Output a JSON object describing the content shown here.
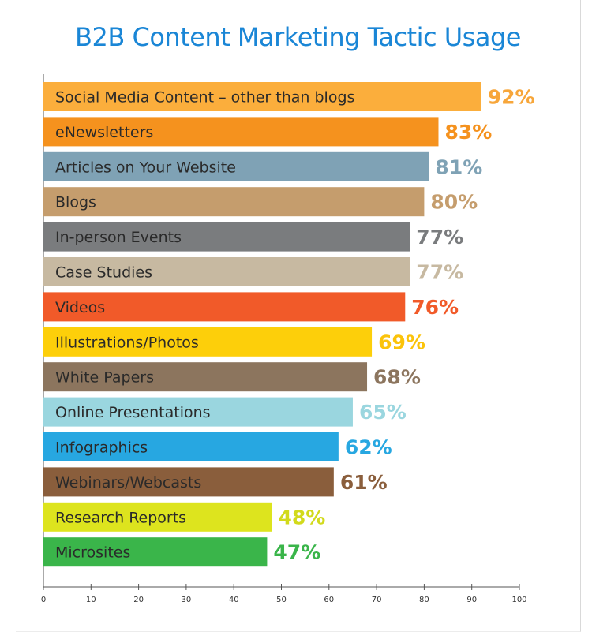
{
  "chart_data": {
    "type": "bar",
    "orientation": "horizontal",
    "title": "B2B Content Marketing Tactic Usage",
    "categories": [
      "Social Media Content – other than blogs",
      "eNewsletters",
      "Articles on Your Website",
      "Blogs",
      "In-person Events",
      "Case Studies",
      "Videos",
      "Illustrations/Photos",
      "White Papers",
      "Online Presentations",
      "Infographics",
      "Webinars/Webcasts",
      "Research Reports",
      "Microsites"
    ],
    "values": [
      92,
      83,
      81,
      80,
      77,
      77,
      76,
      69,
      68,
      65,
      62,
      61,
      48,
      47
    ],
    "value_labels": [
      "92%",
      "83%",
      "81%",
      "80%",
      "77%",
      "77%",
      "76%",
      "69%",
      "68%",
      "65%",
      "62%",
      "61%",
      "48%",
      "47%"
    ],
    "colors": [
      "#fbae3c",
      "#f5921e",
      "#7fa2b5",
      "#c59d6d",
      "#7a7c7e",
      "#c7b9a1",
      "#f15a29",
      "#fdcf0a",
      "#8c755e",
      "#9ad6df",
      "#27a7e1",
      "#8a5e3c",
      "#dde41e",
      "#3ab54a"
    ],
    "label_colors": [
      "#f7a63a",
      "#f5921e",
      "#7fa2b5",
      "#c59d6d",
      "#7a7c7e",
      "#c7b9a1",
      "#f15a29",
      "#fbc30a",
      "#8c755e",
      "#9ad6df",
      "#27a7e1",
      "#8a5e3c",
      "#d2da1b",
      "#3ab54a"
    ],
    "xlim": [
      0,
      100
    ],
    "x_ticks": [
      0,
      10,
      20,
      30,
      40,
      50,
      60,
      70,
      80,
      90,
      100
    ],
    "grid": false,
    "legend": "none"
  }
}
